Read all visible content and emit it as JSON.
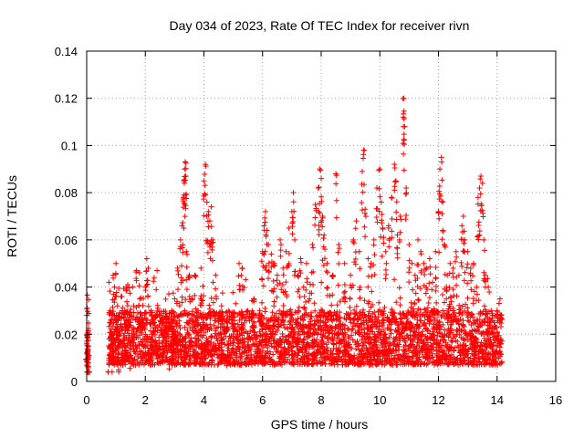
{
  "chart_data": {
    "type": "scatter",
    "title": "Day 034 of 2023, Rate Of TEC Index for receiver rivn",
    "xlabel": "GPS time / hours",
    "ylabel": "ROTI / TECUs",
    "xlim": [
      0,
      16
    ],
    "ylim": [
      0,
      0.14
    ],
    "xticks": [
      0,
      2,
      4,
      6,
      8,
      10,
      12,
      14,
      16
    ],
    "xtick_labels": [
      "0",
      "2",
      "4",
      "6",
      "8",
      "10",
      "12",
      "14",
      "16"
    ],
    "yticks": [
      0,
      0.02,
      0.04,
      0.06,
      0.08,
      0.1,
      0.12,
      0.14
    ],
    "ytick_labels": [
      "0",
      "0.02",
      "0.04",
      "0.06",
      "0.08",
      "0.1",
      "0.12",
      "0.14"
    ],
    "grid": true,
    "marker": "+",
    "color": "#ff0000",
    "series": [
      {
        "name": "ROTI",
        "points": [
          [
            0.0,
            0.012
          ],
          [
            0.02,
            0.019
          ],
          [
            0.04,
            0.01
          ],
          [
            0.05,
            0.015
          ],
          [
            0.06,
            0.02
          ],
          [
            0.07,
            0.011
          ],
          [
            0.75,
            0.015
          ],
          [
            0.8,
            0.03
          ],
          [
            0.85,
            0.02
          ],
          [
            0.9,
            0.045
          ],
          [
            0.95,
            0.04
          ],
          [
            1.0,
            0.05
          ],
          [
            1.05,
            0.032
          ],
          [
            1.1,
            0.018
          ],
          [
            1.2,
            0.036
          ],
          [
            1.3,
            0.03
          ],
          [
            1.35,
            0.04
          ],
          [
            1.4,
            0.041
          ],
          [
            1.5,
            0.025
          ],
          [
            1.6,
            0.032
          ],
          [
            1.7,
            0.047
          ],
          [
            1.8,
            0.046
          ],
          [
            1.9,
            0.028
          ],
          [
            2.0,
            0.04
          ],
          [
            2.05,
            0.052
          ],
          [
            2.1,
            0.048
          ],
          [
            2.2,
            0.03
          ],
          [
            2.3,
            0.044
          ],
          [
            2.4,
            0.047
          ],
          [
            2.5,
            0.028
          ],
          [
            2.6,
            0.02
          ],
          [
            2.7,
            0.027
          ],
          [
            2.8,
            0.025
          ],
          [
            2.9,
            0.03
          ],
          [
            3.0,
            0.035
          ],
          [
            3.1,
            0.048
          ],
          [
            3.2,
            0.06
          ],
          [
            3.25,
            0.066
          ],
          [
            3.3,
            0.078
          ],
          [
            3.32,
            0.085
          ],
          [
            3.34,
            0.09
          ],
          [
            3.36,
            0.093
          ],
          [
            3.38,
            0.087
          ],
          [
            3.4,
            0.055
          ],
          [
            3.5,
            0.045
          ],
          [
            3.6,
            0.035
          ],
          [
            3.7,
            0.045
          ],
          [
            3.8,
            0.03
          ],
          [
            3.9,
            0.048
          ],
          [
            4.0,
            0.085
          ],
          [
            4.05,
            0.092
          ],
          [
            4.1,
            0.076
          ],
          [
            4.15,
            0.072
          ],
          [
            4.2,
            0.068
          ],
          [
            4.25,
            0.074
          ],
          [
            4.3,
            0.06
          ],
          [
            4.4,
            0.045
          ],
          [
            4.5,
            0.028
          ],
          [
            4.6,
            0.032
          ],
          [
            4.8,
            0.025
          ],
          [
            5.0,
            0.027
          ],
          [
            5.2,
            0.05
          ],
          [
            5.3,
            0.048
          ],
          [
            5.5,
            0.03
          ],
          [
            5.7,
            0.035
          ],
          [
            5.9,
            0.03
          ],
          [
            6.0,
            0.055
          ],
          [
            6.05,
            0.066
          ],
          [
            6.1,
            0.072
          ],
          [
            6.15,
            0.064
          ],
          [
            6.2,
            0.058
          ],
          [
            6.3,
            0.054
          ],
          [
            6.4,
            0.05
          ],
          [
            6.5,
            0.045
          ],
          [
            6.6,
            0.06
          ],
          [
            6.7,
            0.048
          ],
          [
            6.8,
            0.055
          ],
          [
            6.9,
            0.065
          ],
          [
            7.0,
            0.072
          ],
          [
            7.05,
            0.08
          ],
          [
            7.1,
            0.06
          ],
          [
            7.2,
            0.045
          ],
          [
            7.3,
            0.052
          ],
          [
            7.4,
            0.04
          ],
          [
            7.5,
            0.05
          ],
          [
            7.6,
            0.035
          ],
          [
            7.7,
            0.058
          ],
          [
            7.8,
            0.075
          ],
          [
            7.9,
            0.082
          ],
          [
            7.95,
            0.09
          ],
          [
            8.0,
            0.086
          ],
          [
            8.05,
            0.07
          ],
          [
            8.1,
            0.062
          ],
          [
            8.2,
            0.05
          ],
          [
            8.4,
            0.045
          ],
          [
            8.5,
            0.088
          ],
          [
            8.6,
            0.058
          ],
          [
            8.8,
            0.05
          ],
          [
            9.0,
            0.045
          ],
          [
            9.1,
            0.06
          ],
          [
            9.2,
            0.068
          ],
          [
            9.3,
            0.055
          ],
          [
            9.4,
            0.089
          ],
          [
            9.45,
            0.098
          ],
          [
            9.5,
            0.073
          ],
          [
            9.6,
            0.052
          ],
          [
            9.7,
            0.05
          ],
          [
            9.8,
            0.06
          ],
          [
            9.9,
            0.082
          ],
          [
            10.0,
            0.09
          ],
          [
            10.05,
            0.076
          ],
          [
            10.1,
            0.065
          ],
          [
            10.2,
            0.055
          ],
          [
            10.3,
            0.066
          ],
          [
            10.4,
            0.078
          ],
          [
            10.5,
            0.092
          ],
          [
            10.55,
            0.085
          ],
          [
            10.6,
            0.062
          ],
          [
            10.7,
            0.07
          ],
          [
            10.8,
            0.112
          ],
          [
            10.82,
            0.12
          ],
          [
            10.85,
            0.108
          ],
          [
            10.9,
            0.082
          ],
          [
            11.0,
            0.058
          ],
          [
            11.1,
            0.05
          ],
          [
            11.2,
            0.045
          ],
          [
            11.3,
            0.06
          ],
          [
            11.4,
            0.055
          ],
          [
            11.5,
            0.05
          ],
          [
            11.6,
            0.048
          ],
          [
            11.7,
            0.052
          ],
          [
            11.8,
            0.042
          ],
          [
            11.9,
            0.055
          ],
          [
            12.0,
            0.072
          ],
          [
            12.05,
            0.09
          ],
          [
            12.1,
            0.095
          ],
          [
            12.15,
            0.076
          ],
          [
            12.2,
            0.058
          ],
          [
            12.3,
            0.045
          ],
          [
            12.4,
            0.05
          ],
          [
            12.5,
            0.048
          ],
          [
            12.6,
            0.055
          ],
          [
            12.7,
            0.045
          ],
          [
            12.8,
            0.066
          ],
          [
            12.85,
            0.07
          ],
          [
            12.9,
            0.06
          ],
          [
            13.0,
            0.055
          ],
          [
            13.1,
            0.048
          ],
          [
            13.2,
            0.05
          ],
          [
            13.3,
            0.04
          ],
          [
            13.35,
            0.078
          ],
          [
            13.4,
            0.082
          ],
          [
            13.45,
            0.087
          ],
          [
            13.5,
            0.084
          ],
          [
            13.55,
            0.06
          ],
          [
            13.6,
            0.045
          ],
          [
            13.7,
            0.04
          ],
          [
            13.8,
            0.03
          ],
          [
            13.9,
            0.025
          ],
          [
            14.0,
            0.03
          ],
          [
            14.1,
            0.035
          ],
          [
            14.15,
            0.028
          ]
        ]
      }
    ],
    "dense_band": {
      "x_ranges": [
        [
          0.0,
          0.07
        ],
        [
          0.75,
          14.15
        ]
      ],
      "y_floor": 0.004,
      "y_typical": [
        0.007,
        0.03
      ]
    }
  }
}
